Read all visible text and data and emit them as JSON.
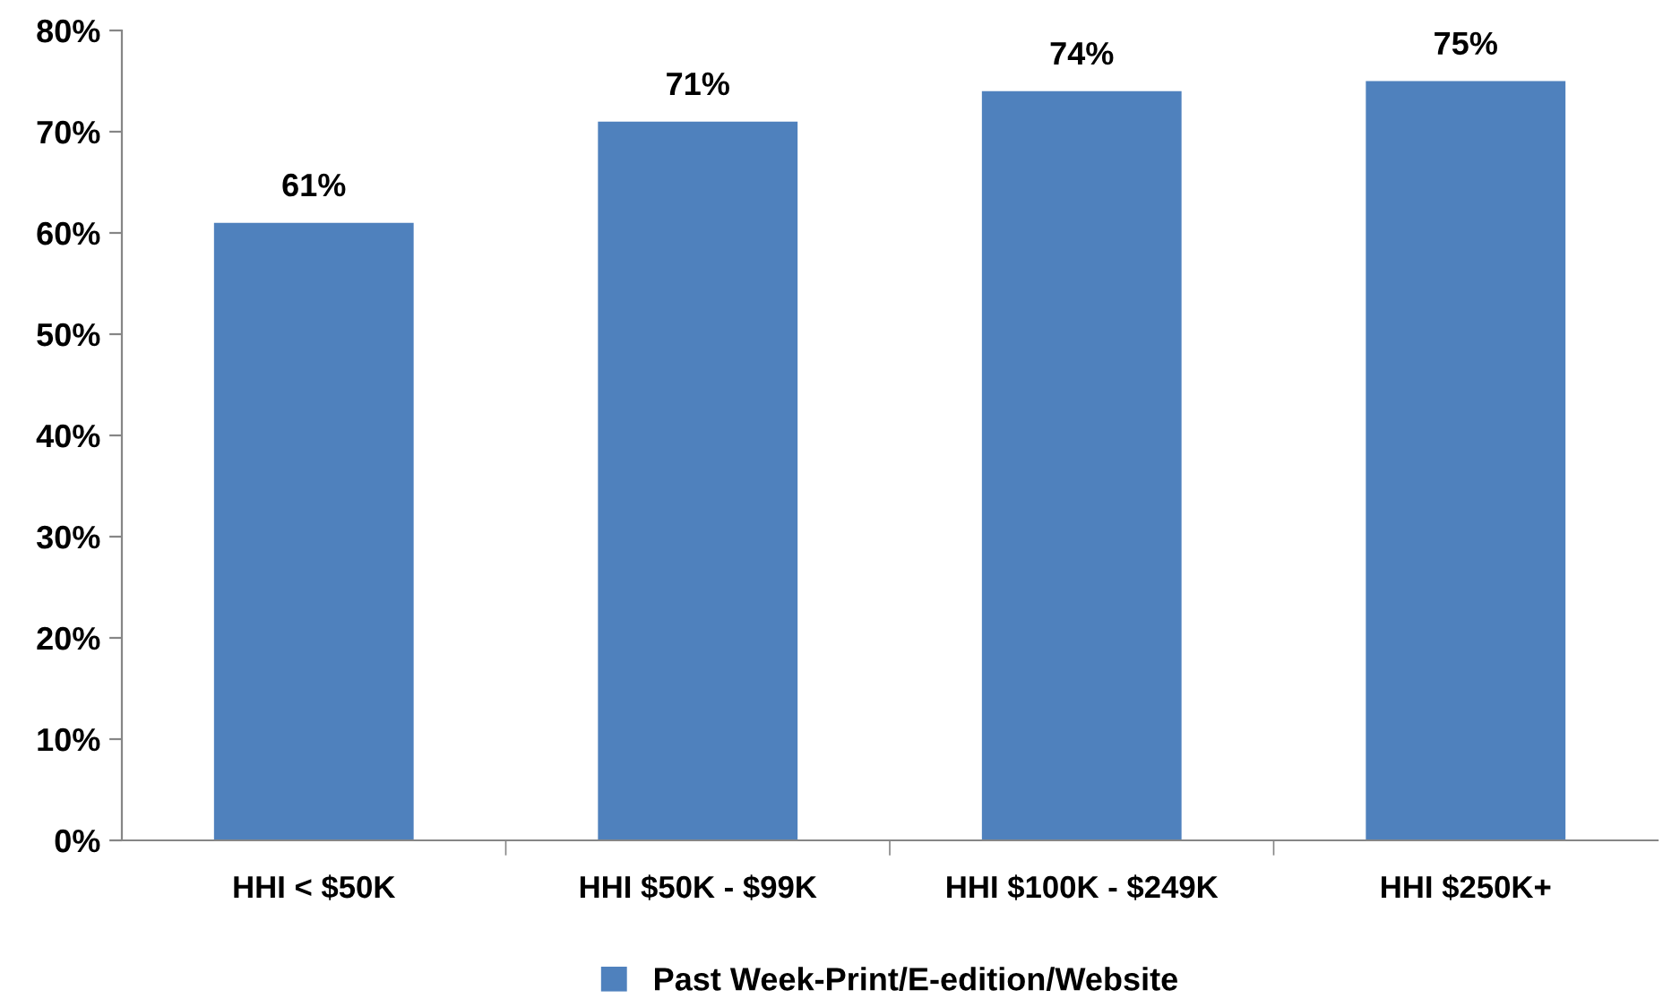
{
  "chart_data": {
    "type": "bar",
    "categories": [
      "HHI < $50K",
      "HHI $50K - $99K",
      "HHI $100K - $249K",
      "HHI $250K+"
    ],
    "series": [
      {
        "name": "Past Week-Print/E-edition/Website",
        "color": "#4f81bd",
        "values": [
          61,
          71,
          74,
          75
        ],
        "value_labels": [
          "61%",
          "71%",
          "74%",
          "75%"
        ]
      }
    ],
    "ylim": [
      0,
      80
    ],
    "yticks": [
      {
        "value": 0,
        "label": "0%"
      },
      {
        "value": 10,
        "label": "10%"
      },
      {
        "value": 20,
        "label": "20%"
      },
      {
        "value": 30,
        "label": "30%"
      },
      {
        "value": 40,
        "label": "40%"
      },
      {
        "value": 50,
        "label": "50%"
      },
      {
        "value": 60,
        "label": "60%"
      },
      {
        "value": 70,
        "label": "70%"
      },
      {
        "value": 80,
        "label": "80%"
      }
    ],
    "grid": false,
    "legend": "bottom"
  }
}
